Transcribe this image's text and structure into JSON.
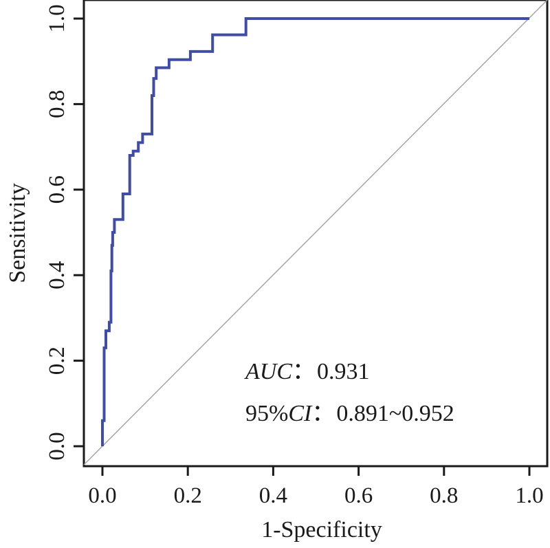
{
  "chart_data": {
    "type": "line",
    "title": "",
    "xlabel": "1-Specificity",
    "ylabel": "Sensitivity",
    "xlim": [
      0,
      1
    ],
    "ylim": [
      0,
      1
    ],
    "x_ticks": [
      "0.0",
      "0.2",
      "0.4",
      "0.6",
      "0.8",
      "1.0"
    ],
    "y_ticks": [
      "0.0",
      "0.2",
      "0.4",
      "0.6",
      "0.8",
      "1.0"
    ],
    "grid": false,
    "legend": "none",
    "colors": {
      "roc": "#3F4CA8",
      "reference": "#a6a6a6",
      "frame": "#1a1a1a"
    },
    "series": [
      {
        "x": [
          0.0,
          0.0,
          0.004,
          0.004,
          0.008,
          0.008,
          0.016,
          0.016,
          0.02,
          0.02,
          0.022,
          0.022,
          0.024,
          0.024,
          0.028,
          0.028,
          0.03,
          0.03,
          0.048,
          0.048,
          0.056,
          0.056,
          0.064,
          0.064,
          0.07,
          0.07,
          0.072,
          0.072,
          0.084,
          0.084,
          0.094,
          0.094,
          0.116,
          0.116,
          0.12,
          0.12,
          0.126,
          0.126,
          0.132,
          0.132,
          0.156,
          0.156,
          0.206,
          0.206,
          0.258,
          0.258,
          0.336,
          0.336,
          1.0
        ],
        "y": [
          0.0,
          0.06,
          0.06,
          0.23,
          0.23,
          0.27,
          0.27,
          0.29,
          0.29,
          0.41,
          0.41,
          0.47,
          0.47,
          0.5,
          0.5,
          0.53,
          0.53,
          0.53,
          0.53,
          0.59,
          0.59,
          0.59,
          0.59,
          0.68,
          0.68,
          0.68,
          0.68,
          0.69,
          0.69,
          0.71,
          0.71,
          0.73,
          0.73,
          0.82,
          0.82,
          0.86,
          0.86,
          0.885,
          0.885,
          0.885,
          0.885,
          0.904,
          0.904,
          0.923,
          0.923,
          0.962,
          0.962,
          1.0,
          1.0
        ]
      },
      {
        "x": [
          0,
          1
        ],
        "y": [
          0,
          1
        ]
      }
    ]
  },
  "annotations": {
    "auc_label": "AUC",
    "auc_colon": "：",
    "auc_value": "0.931",
    "ci_prefix": "95%",
    "ci_label": "CI",
    "ci_colon": "：",
    "ci_value": "0.891~0.952"
  }
}
